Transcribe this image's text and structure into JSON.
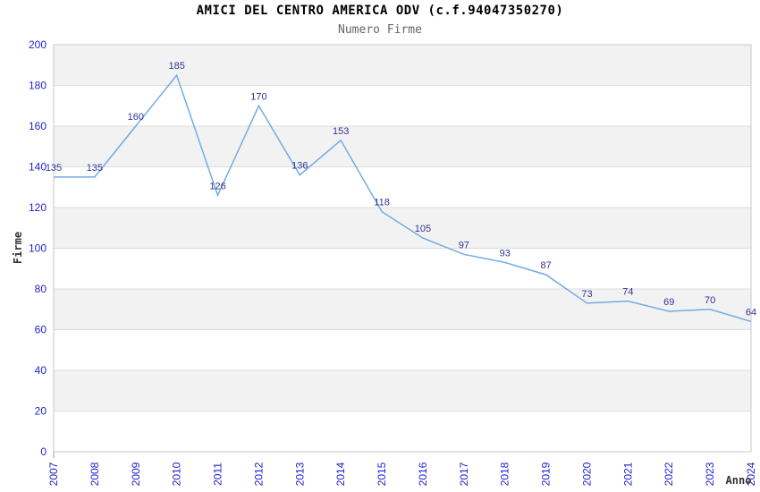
{
  "header": {
    "title": "AMICI DEL CENTRO AMERICA ODV (c.f.94047350270)",
    "subtitle": "Numero Firme"
  },
  "chart_data": {
    "type": "line",
    "title": "AMICI DEL CENTRO AMERICA ODV (c.f.94047350270)",
    "subtitle": "Numero Firme",
    "x": [
      2007,
      2008,
      2009,
      2010,
      2011,
      2012,
      2013,
      2014,
      2015,
      2016,
      2017,
      2018,
      2019,
      2020,
      2021,
      2022,
      2023,
      2024
    ],
    "series": [
      {
        "name": "Numero Firme",
        "values": [
          135,
          135,
          160,
          185,
          126,
          170,
          136,
          153,
          118,
          105,
          97,
          93,
          87,
          73,
          74,
          69,
          70,
          64
        ]
      }
    ],
    "xlabel": "Anno",
    "ylabel": "Firme",
    "ylim": [
      0,
      200
    ],
    "ytick_step": 20,
    "grid": "horizontal-alternating-bands",
    "legend_position": "none",
    "data_labels_visible": true,
    "colors": {
      "line": "#74abe2",
      "data_label": "#333399",
      "tick_label": "#2222cc",
      "band_gray": "#f2f2f2",
      "band_white": "#ffffff",
      "grid_line": "#dddddd",
      "plot_border": "#c8c8c8",
      "axis_tick": "#999999",
      "axis_title": "#333333",
      "title": "#000000",
      "subtitle": "#666666"
    }
  }
}
